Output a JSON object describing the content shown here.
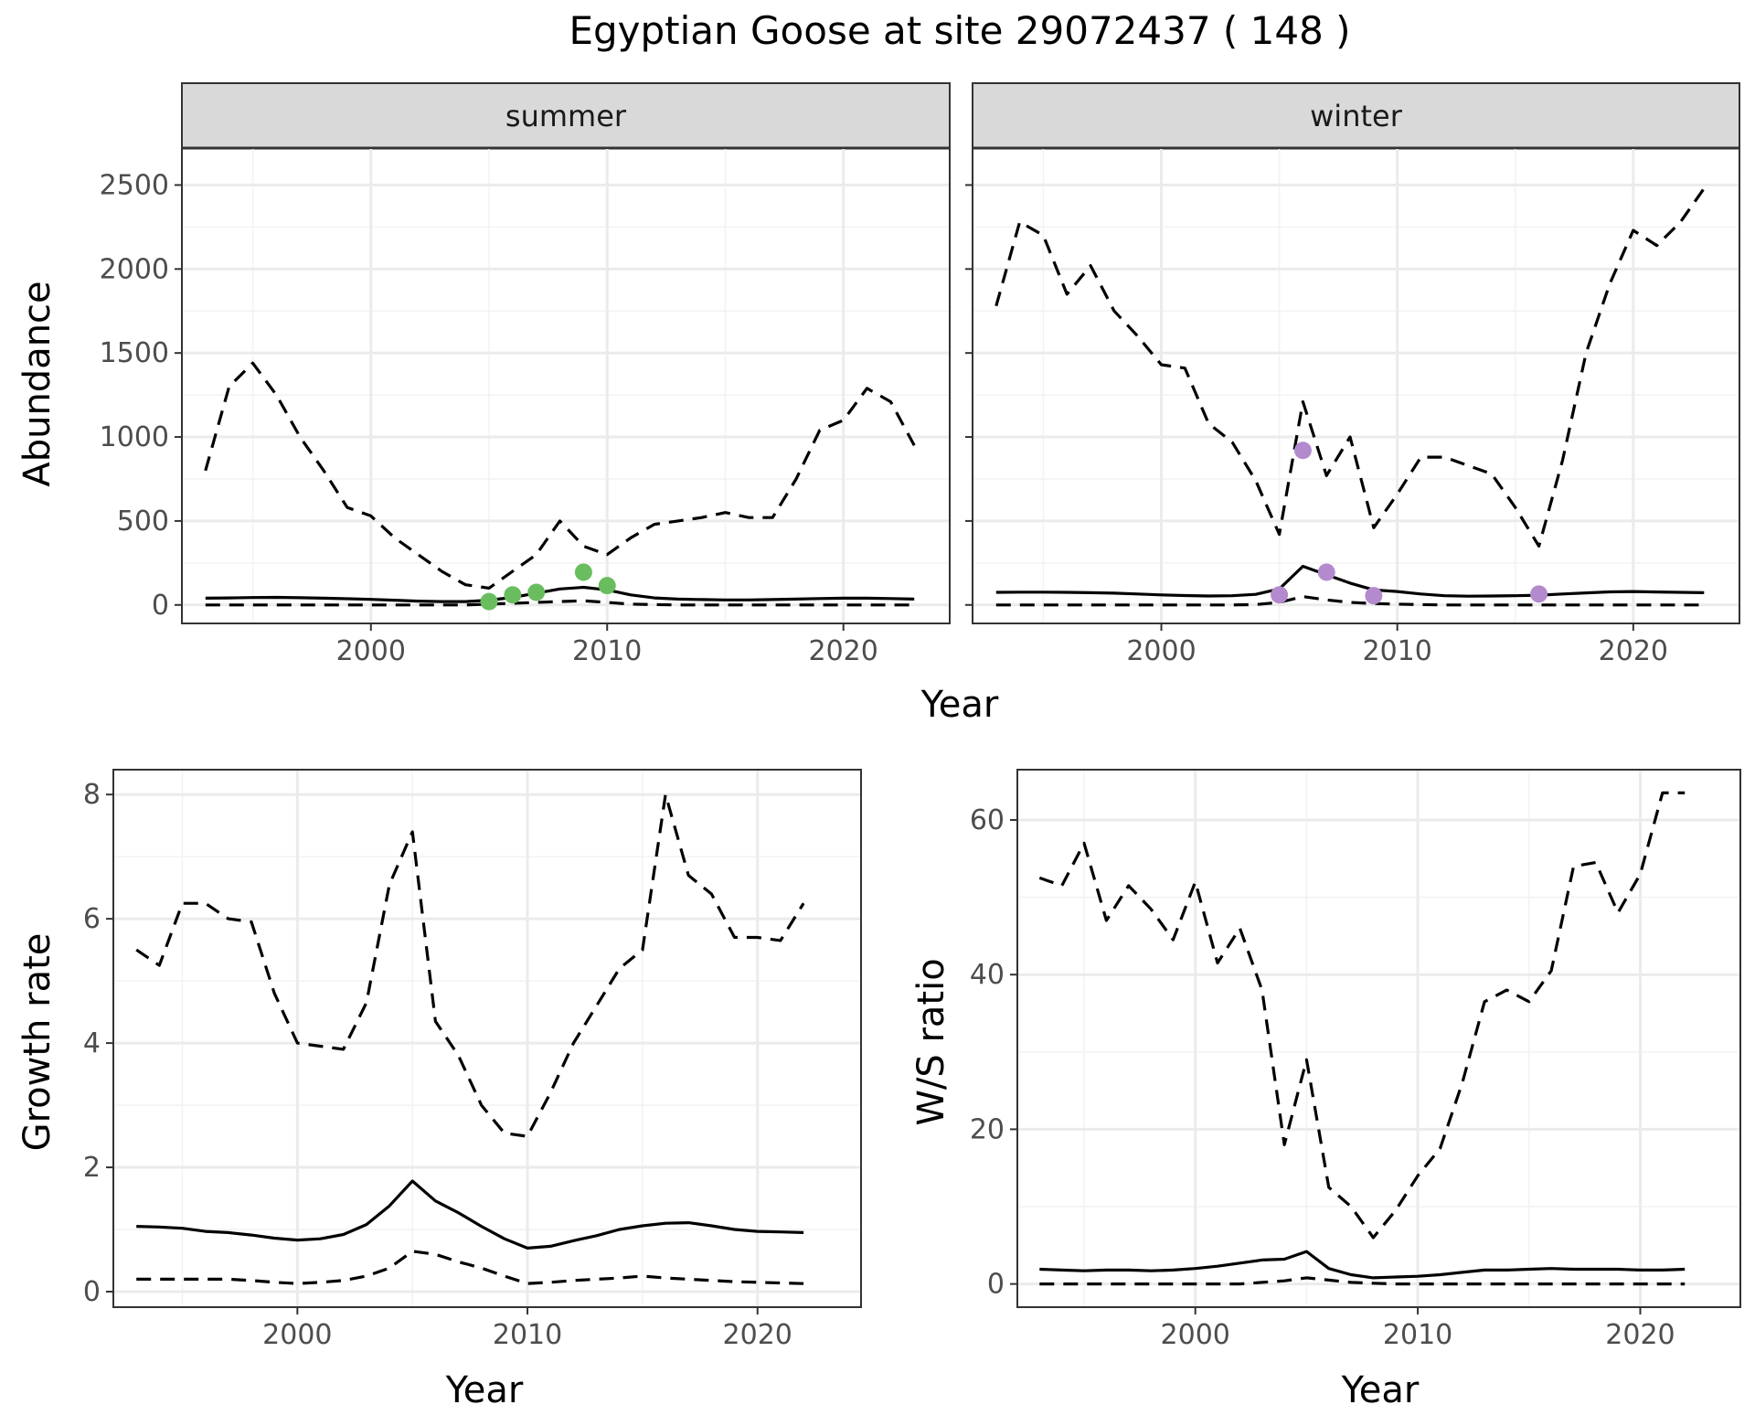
{
  "figure": {
    "title": "Egyptian Goose at site 29072437 ( 148 )"
  },
  "chart_data": [
    {
      "type": "line",
      "panel": "abundance",
      "facets": [
        {
          "strip": "summer",
          "point_color": "#6ABD5F",
          "years": [
            1993,
            1994,
            1995,
            1996,
            1997,
            1998,
            1999,
            2000,
            2001,
            2002,
            2003,
            2004,
            2005,
            2006,
            2007,
            2008,
            2009,
            2010,
            2011,
            2012,
            2013,
            2014,
            2015,
            2016,
            2017,
            2018,
            2019,
            2020,
            2021,
            2022,
            2023
          ],
          "mean": [
            40,
            42,
            44,
            45,
            43,
            40,
            37,
            33,
            28,
            23,
            20,
            20,
            28,
            45,
            70,
            95,
            105,
            90,
            60,
            42,
            35,
            32,
            30,
            30,
            32,
            35,
            38,
            40,
            40,
            38,
            35
          ],
          "upper": [
            800,
            1300,
            1440,
            1250,
            1000,
            800,
            580,
            530,
            400,
            300,
            200,
            120,
            100,
            200,
            300,
            500,
            350,
            300,
            400,
            480,
            500,
            520,
            550,
            520,
            520,
            750,
            1040,
            1100,
            1290,
            1210,
            950
          ],
          "lower": [
            0,
            0,
            0,
            0,
            0,
            0,
            0,
            0,
            0,
            0,
            0,
            0,
            5,
            10,
            15,
            20,
            25,
            15,
            5,
            2,
            0,
            0,
            0,
            0,
            0,
            0,
            0,
            0,
            0,
            0,
            0
          ],
          "points": {
            "x": [
              2005,
              2006,
              2007,
              2009,
              2010
            ],
            "y": [
              20,
              60,
              75,
              195,
              115
            ]
          }
        },
        {
          "strip": "winter",
          "point_color": "#B38ACD",
          "years": [
            1993,
            1994,
            1995,
            1996,
            1997,
            1998,
            1999,
            2000,
            2001,
            2002,
            2003,
            2004,
            2005,
            2006,
            2007,
            2008,
            2009,
            2010,
            2011,
            2012,
            2013,
            2014,
            2015,
            2016,
            2017,
            2018,
            2019,
            2020,
            2021,
            2022,
            2023
          ],
          "mean": [
            75,
            76,
            76,
            75,
            73,
            70,
            65,
            60,
            56,
            53,
            55,
            63,
            95,
            230,
            180,
            130,
            90,
            80,
            65,
            55,
            52,
            53,
            55,
            58,
            65,
            72,
            78,
            80,
            77,
            75,
            73
          ],
          "upper": [
            1780,
            2280,
            2200,
            1850,
            2020,
            1750,
            1600,
            1430,
            1410,
            1080,
            970,
            740,
            420,
            1210,
            770,
            1000,
            460,
            660,
            880,
            880,
            830,
            780,
            580,
            350,
            860,
            1500,
            1910,
            2230,
            2140,
            2280,
            2480
          ],
          "lower": [
            0,
            0,
            0,
            0,
            0,
            0,
            0,
            0,
            0,
            0,
            0,
            2,
            15,
            50,
            30,
            15,
            8,
            5,
            2,
            0,
            0,
            0,
            0,
            0,
            0,
            0,
            0,
            0,
            0,
            0,
            0
          ],
          "points": {
            "x": [
              2005,
              2006,
              2007,
              2009,
              2016
            ],
            "y": [
              60,
              920,
              195,
              55,
              65
            ]
          }
        }
      ],
      "x_range": [
        1992,
        2024.5
      ],
      "y_range": [
        -110,
        2720
      ],
      "x_ticks": [
        2000,
        2010,
        2020
      ],
      "y_ticks": [
        0,
        500,
        1000,
        1500,
        2000,
        2500
      ],
      "xlabel": "Year",
      "ylabel": "Abundance",
      "grid": true,
      "legend": "none"
    },
    {
      "type": "line",
      "panel": "growth_rate",
      "years": [
        1993,
        1994,
        1995,
        1996,
        1997,
        1998,
        1999,
        2000,
        2001,
        2002,
        2003,
        2004,
        2005,
        2006,
        2007,
        2008,
        2009,
        2010,
        2011,
        2012,
        2013,
        2014,
        2015,
        2016,
        2017,
        2018,
        2019,
        2020,
        2021,
        2022
      ],
      "mean": [
        1.05,
        1.04,
        1.02,
        0.97,
        0.95,
        0.91,
        0.86,
        0.83,
        0.85,
        0.92,
        1.08,
        1.38,
        1.78,
        1.46,
        1.27,
        1.05,
        0.85,
        0.7,
        0.73,
        0.82,
        0.9,
        1.0,
        1.06,
        1.1,
        1.11,
        1.06,
        1.0,
        0.97,
        0.96,
        0.95
      ],
      "upper": [
        5.5,
        5.25,
        6.25,
        6.25,
        6.0,
        5.95,
        4.8,
        4.0,
        3.95,
        3.9,
        4.65,
        6.55,
        7.4,
        4.35,
        3.8,
        3.0,
        2.55,
        2.5,
        3.2,
        4.0,
        4.6,
        5.2,
        5.5,
        8.0,
        6.7,
        6.4,
        5.7,
        5.7,
        5.65,
        6.25
      ],
      "lower": [
        0.2,
        0.2,
        0.2,
        0.2,
        0.2,
        0.18,
        0.15,
        0.13,
        0.15,
        0.18,
        0.25,
        0.38,
        0.65,
        0.6,
        0.48,
        0.38,
        0.25,
        0.13,
        0.15,
        0.18,
        0.2,
        0.22,
        0.25,
        0.22,
        0.2,
        0.18,
        0.16,
        0.15,
        0.14,
        0.13
      ],
      "x_range": [
        1992,
        2024.5
      ],
      "y_range": [
        -0.25,
        8.4
      ],
      "x_ticks": [
        2000,
        2010,
        2020
      ],
      "y_ticks": [
        0,
        2,
        4,
        6,
        8
      ],
      "xlabel": "Year",
      "ylabel": "Growth rate",
      "grid": true,
      "legend": "none"
    },
    {
      "type": "line",
      "panel": "ws_ratio",
      "years": [
        1993,
        1994,
        1995,
        1996,
        1997,
        1998,
        1999,
        2000,
        2001,
        2002,
        2003,
        2004,
        2005,
        2006,
        2007,
        2008,
        2009,
        2010,
        2011,
        2012,
        2013,
        2014,
        2015,
        2016,
        2017,
        2018,
        2019,
        2020,
        2021,
        2022
      ],
      "mean": [
        1.9,
        1.8,
        1.7,
        1.8,
        1.8,
        1.7,
        1.8,
        2.0,
        2.3,
        2.7,
        3.1,
        3.2,
        4.2,
        2.0,
        1.2,
        0.8,
        0.9,
        1.0,
        1.2,
        1.5,
        1.8,
        1.8,
        1.9,
        2.0,
        1.9,
        1.9,
        1.9,
        1.8,
        1.8,
        1.9
      ],
      "upper": [
        52.5,
        51.5,
        57,
        47,
        51.5,
        48.5,
        44.5,
        52,
        41.5,
        46,
        38,
        18,
        29,
        12.5,
        10,
        6,
        9.5,
        14,
        17.5,
        26,
        36.5,
        38,
        36.5,
        40.5,
        54,
        54.5,
        48,
        53,
        63.5,
        63.5
      ],
      "lower": [
        0,
        0,
        0,
        0,
        0,
        0,
        0,
        0,
        0,
        0,
        0.2,
        0.4,
        0.8,
        0.5,
        0.2,
        0.1,
        0,
        0,
        0,
        0,
        0,
        0,
        0,
        0,
        0,
        0,
        0,
        0,
        0,
        0
      ],
      "x_range": [
        1992,
        2024.5
      ],
      "y_range": [
        -3,
        66.5
      ],
      "x_ticks": [
        2000,
        2010,
        2020
      ],
      "y_ticks": [
        0,
        20,
        40,
        60
      ],
      "xlabel": "Year",
      "ylabel": "W/S ratio",
      "grid": true,
      "legend": "none"
    }
  ]
}
